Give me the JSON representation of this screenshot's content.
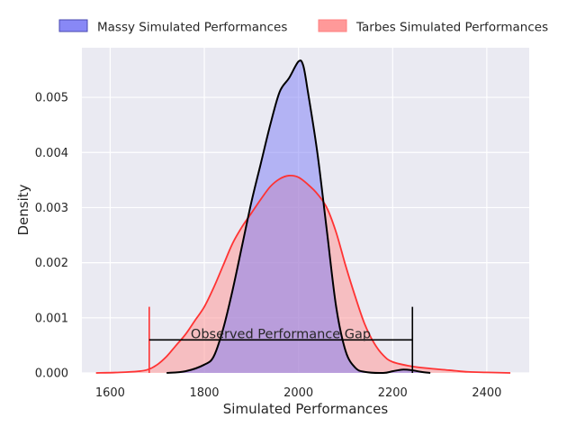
{
  "chart_data": {
    "type": "area",
    "title": "",
    "xlabel": "Simulated Performances",
    "ylabel": "Density",
    "xlim": [
      1540,
      2490
    ],
    "ylim": [
      0,
      0.0059
    ],
    "grid": true,
    "legend_position": "top",
    "x_ticks": [
      1600,
      1800,
      2000,
      2200,
      2400
    ],
    "y_ticks": [
      0.0,
      0.001,
      0.002,
      0.003,
      0.004,
      0.005
    ],
    "series": [
      {
        "name": "Massy Simulated Performances",
        "fill_color": "#7b7bf5",
        "line_color": "#000000",
        "points": [
          [
            1720,
            0.0
          ],
          [
            1760,
            3e-05
          ],
          [
            1800,
            0.00015
          ],
          [
            1820,
            0.0003
          ],
          [
            1840,
            0.0008
          ],
          [
            1860,
            0.0015
          ],
          [
            1880,
            0.0023
          ],
          [
            1900,
            0.0031
          ],
          [
            1920,
            0.0038
          ],
          [
            1940,
            0.0045
          ],
          [
            1960,
            0.0051
          ],
          [
            1980,
            0.00535
          ],
          [
            2000,
            0.00565
          ],
          [
            2010,
            0.00558
          ],
          [
            2020,
            0.0051
          ],
          [
            2040,
            0.004
          ],
          [
            2060,
            0.0026
          ],
          [
            2080,
            0.0012
          ],
          [
            2100,
            0.0004
          ],
          [
            2120,
            0.0001
          ],
          [
            2140,
            2e-05
          ],
          [
            2180,
            0.0
          ],
          [
            2200,
            3e-05
          ],
          [
            2220,
            6e-05
          ],
          [
            2240,
            5e-05
          ],
          [
            2260,
            2e-05
          ],
          [
            2280,
            0.0
          ]
        ]
      },
      {
        "name": "Tarbes Simulated Performances",
        "fill_color": "#ff9999",
        "line_color": "#ff3333",
        "points": [
          [
            1570,
            0.0
          ],
          [
            1620,
            1e-05
          ],
          [
            1660,
            3e-05
          ],
          [
            1680,
            6e-05
          ],
          [
            1700,
            0.00015
          ],
          [
            1720,
            0.0003
          ],
          [
            1740,
            0.0005
          ],
          [
            1760,
            0.0007
          ],
          [
            1780,
            0.00095
          ],
          [
            1800,
            0.0012
          ],
          [
            1820,
            0.00155
          ],
          [
            1840,
            0.00195
          ],
          [
            1860,
            0.00235
          ],
          [
            1880,
            0.00265
          ],
          [
            1900,
            0.0029
          ],
          [
            1920,
            0.00315
          ],
          [
            1940,
            0.00338
          ],
          [
            1960,
            0.00352
          ],
          [
            1980,
            0.00358
          ],
          [
            2000,
            0.00355
          ],
          [
            2020,
            0.00342
          ],
          [
            2040,
            0.00325
          ],
          [
            2060,
            0.003
          ],
          [
            2080,
            0.00255
          ],
          [
            2100,
            0.00195
          ],
          [
            2120,
            0.0014
          ],
          [
            2140,
            0.0009
          ],
          [
            2160,
            0.00055
          ],
          [
            2180,
            0.00032
          ],
          [
            2200,
            0.0002
          ],
          [
            2240,
            0.00012
          ],
          [
            2280,
            8e-05
          ],
          [
            2320,
            5e-05
          ],
          [
            2360,
            2e-05
          ],
          [
            2400,
            1e-05
          ],
          [
            2450,
            0.0
          ]
        ]
      }
    ],
    "annotations": [
      {
        "text": "Observed Performance Gap",
        "x_start": 1683,
        "x_end": 2242,
        "y": 0.0006
      }
    ],
    "markers": [
      {
        "x": 1683,
        "y_top": 0.0012,
        "color": "#ff3333"
      },
      {
        "x": 2242,
        "y_top": 0.0012,
        "color": "#000000"
      }
    ]
  }
}
